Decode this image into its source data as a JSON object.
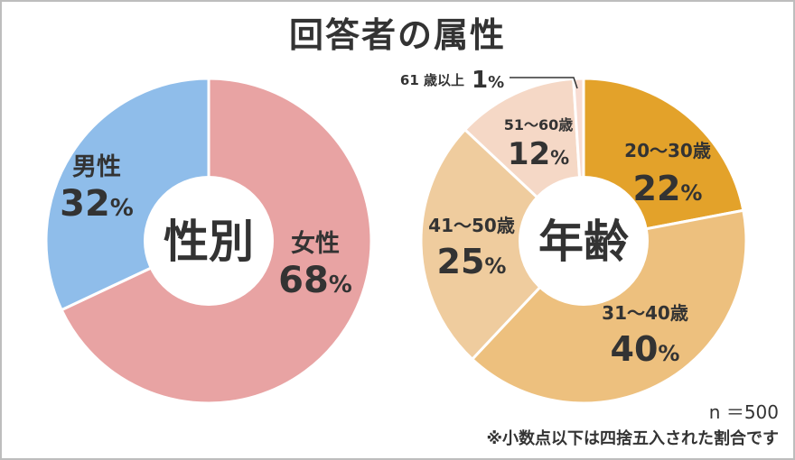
{
  "title": "回答者の属性",
  "chart_data": [
    {
      "type": "pie",
      "title": "性別",
      "center_label": "性別",
      "slices": [
        {
          "label": "女性",
          "value": 68,
          "display": "68",
          "color": "#e8a3a3"
        },
        {
          "label": "男性",
          "value": 32,
          "display": "32",
          "color": "#8fbdea"
        }
      ]
    },
    {
      "type": "pie",
      "title": "年齢",
      "center_label": "年齢",
      "slices": [
        {
          "label": "20～30歳",
          "value": 22,
          "display": "22",
          "color": "#e3a22a"
        },
        {
          "label": "31～40歳",
          "value": 40,
          "display": "40",
          "color": "#edc07e"
        },
        {
          "label": "41～50歳",
          "value": 25,
          "display": "25",
          "color": "#efcc9e"
        },
        {
          "label": "51～60歳",
          "value": 12,
          "display": "12",
          "color": "#f5d8c6"
        },
        {
          "label": "61 歳以上",
          "value": 1,
          "display": "1",
          "color": "#f8dcd2"
        }
      ]
    }
  ],
  "percent_sign": "%",
  "footer": {
    "n": "n ＝500",
    "note": "※小数点以下は四捨五入された割合です"
  }
}
